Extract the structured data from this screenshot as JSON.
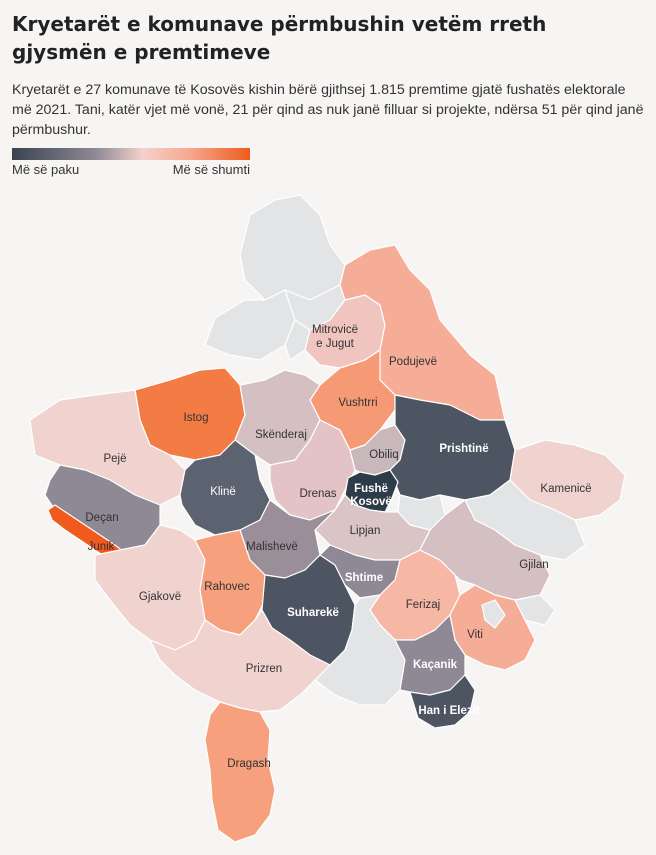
{
  "title": "Kryetarët e komunave përmbushin vetëm rreth gjysmën e premtimeve",
  "subtitle": "Kryetarët e 27 komunave të Kosovës kishin bërë gjithsej 1.815 premtime gjatë fushatës elektorale më 2021. Tani, katër vjet më vonë, 21 për qind as nuk janë filluar si projekte, ndërsa 51 për qind janë përmbushur.",
  "legend": {
    "low_label": "Më së paku",
    "high_label": "Më së shumti"
  },
  "colors": {
    "no_data": "#e3e4e6",
    "dark": "#3a4350",
    "dark_mid": "#5b6270",
    "mid": "#8f8895",
    "mauve": "#c8b8bc",
    "pale": "#f0d2cf",
    "salmon": "#f6ad98",
    "orange_light": "#f59a74",
    "orange": "#f37c45",
    "orange_strong": "#f05a1c"
  },
  "municipalities": {
    "istog": "Istog",
    "pejë": "Pejë",
    "deçan": "Deçan",
    "junik": "Junik",
    "gjakovë": "Gjakovë",
    "klinë": "Klinë",
    "skënderaj": "Skënderaj",
    "mitrovicë": "Mitrovicë\ne Jugut",
    "mitrovicë_1": "Mitrovicë",
    "mitrovicë_2": "e Jugut",
    "vushtrri": "Vushtrri",
    "podujevë": "Podujevë",
    "prishtinë": "Prishtinë",
    "obiliq": "Obiliq",
    "fushë_kosovë_1": "Fushë",
    "fushë_kosovë_2": "Kosovë",
    "drenas": "Drenas",
    "lipjan": "Lipjan",
    "malishevë": "Malishevë",
    "rahovec": "Rahovec",
    "suharekë": "Suharekë",
    "shtime": "Shtime",
    "ferizaj": "Ferizaj",
    "gjilan": "Gjilan",
    "kamenicë": "Kamenicë",
    "viti": "Viti",
    "kaçanik": "Kaçanik",
    "han_i_elezit": "Han i Elezit",
    "prizren": "Prizren",
    "dragash": "Dragash"
  }
}
